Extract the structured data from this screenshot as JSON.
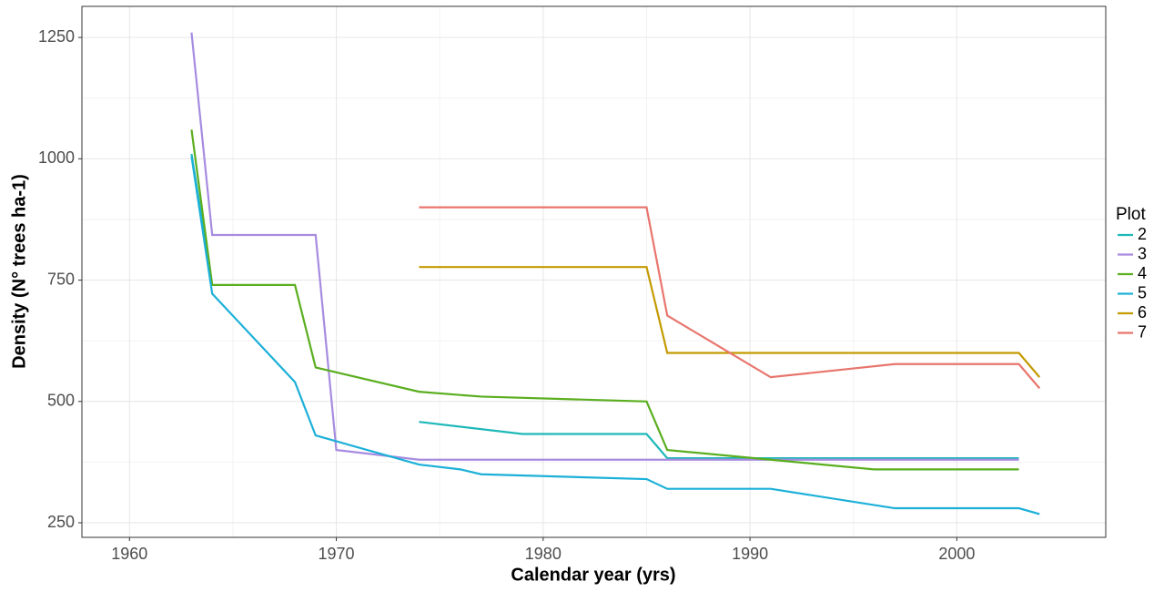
{
  "chart_data": {
    "type": "line",
    "x_label": "Calendar year (yrs)",
    "y_label": "Density (N° trees ha-1)",
    "legend_title": "Plot",
    "xlim": [
      1957.7,
      2007.2
    ],
    "xticks": [
      1960,
      1970,
      1980,
      1990,
      2000
    ],
    "ylim": [
      220,
      1314
    ],
    "yticks": [
      250,
      500,
      750,
      1000,
      1250
    ],
    "grid": true,
    "legend": "right",
    "series": [
      {
        "name": "2",
        "color": "#1fb8b8",
        "x": [
          1963,
          1964,
          1970,
          1974,
          1979,
          1985,
          1986,
          2003
        ],
        "values": [
          1010,
          740,
          null,
          458,
          433,
          433,
          383,
          383
        ]
      },
      {
        "name": "3",
        "color": "#a78be0",
        "x": [
          1963,
          1964,
          1969,
          1970,
          1974,
          2003
        ],
        "values": [
          1260,
          843,
          843,
          400,
          380,
          380
        ]
      },
      {
        "name": "4",
        "color": "#5aae1f",
        "x": [
          1963,
          1964,
          1968,
          1969,
          1974,
          1977,
          1985,
          1986,
          1991,
          1993,
          1996,
          2003
        ],
        "values": [
          1060,
          740,
          740,
          570,
          520,
          510,
          500,
          400,
          380,
          372,
          360,
          360
        ]
      },
      {
        "name": "5",
        "color": "#1cb0d8",
        "x": [
          1963,
          1964,
          1968,
          1969,
          1974,
          1976,
          1977,
          1985,
          1986,
          1991,
          1997,
          2003,
          2004
        ],
        "values": [
          1005,
          722,
          540,
          430,
          370,
          360,
          350,
          340,
          320,
          320,
          280,
          280,
          268
        ]
      },
      {
        "name": "6",
        "color": "#c49a00",
        "x": [
          1974,
          1985,
          1986,
          2003,
          2004
        ],
        "values": [
          777,
          777,
          600,
          600,
          550
        ]
      },
      {
        "name": "7",
        "color": "#e8756d",
        "x": [
          1974,
          1985,
          1986,
          1991,
          1997,
          2003,
          2004
        ],
        "values": [
          900,
          900,
          677,
          550,
          577,
          577,
          527
        ]
      }
    ]
  }
}
